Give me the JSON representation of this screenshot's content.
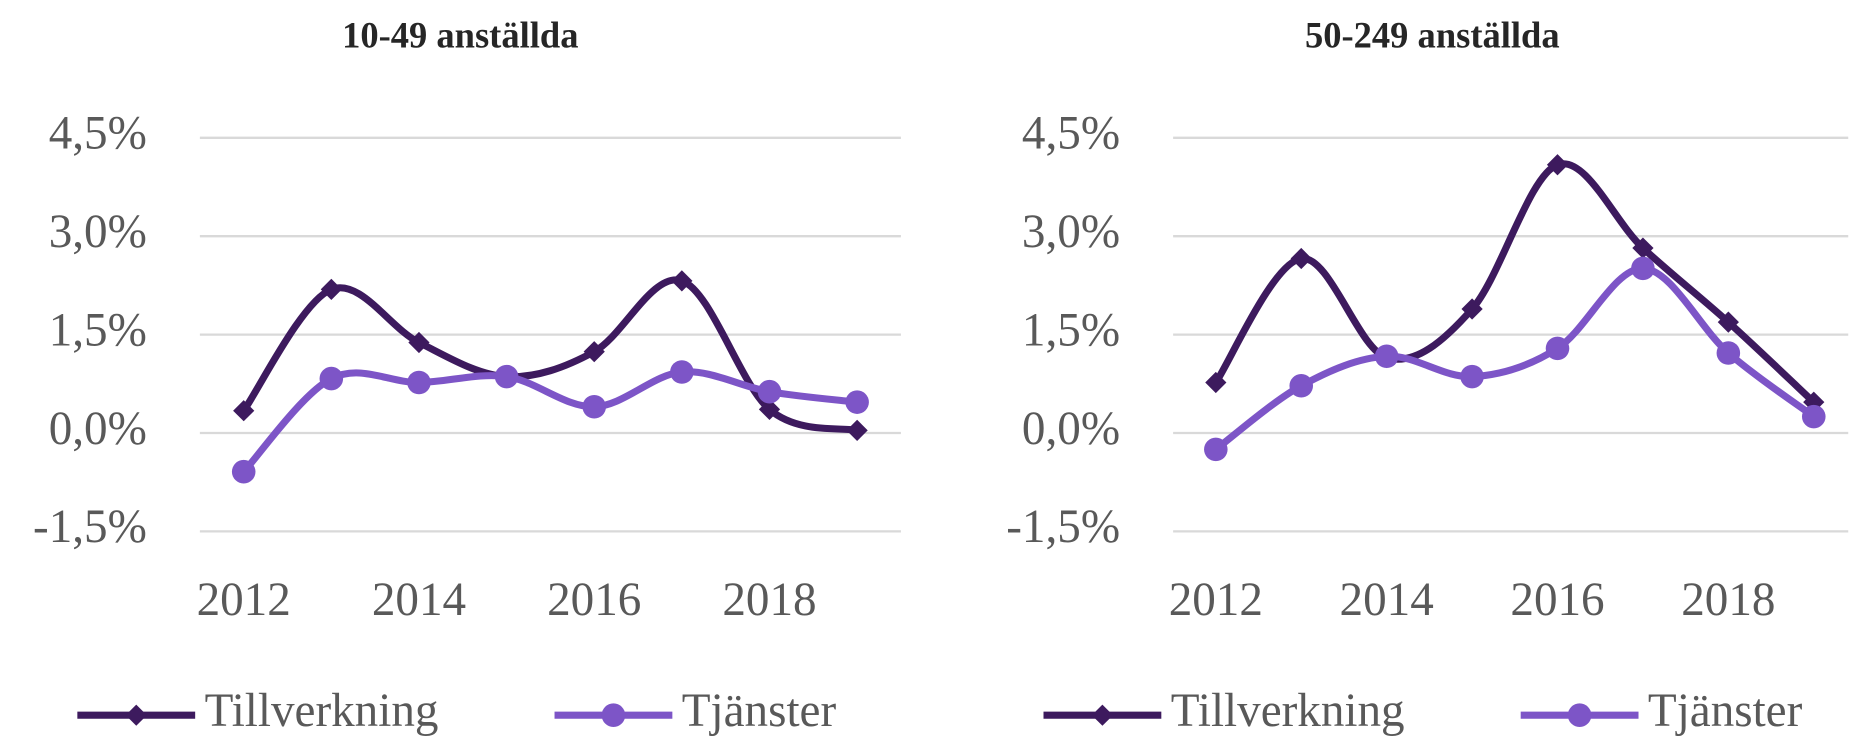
{
  "chart_data": [
    {
      "type": "line",
      "title": "10-49 anställda",
      "x": [
        2012,
        2013,
        2014,
        2015,
        2016,
        2017,
        2018,
        2019
      ],
      "series": [
        {
          "name": "Tillverkning",
          "color": "#3d1a5e",
          "marker": "diamond",
          "values": [
            0.34,
            2.19,
            1.38,
            0.86,
            1.24,
            2.32,
            0.36,
            0.04
          ]
        },
        {
          "name": "Tjänster",
          "color": "#7d55c7",
          "marker": "circle",
          "values": [
            -0.59,
            0.83,
            0.77,
            0.86,
            0.4,
            0.93,
            0.63,
            0.47
          ]
        }
      ],
      "xlim": [
        2011.5,
        2019.5
      ],
      "xticks": [
        2012,
        2014,
        2016,
        2018
      ],
      "ylim": [
        -1.5,
        4.5
      ],
      "yticks": [
        {
          "value": -1.5,
          "label": "-1,5%"
        },
        {
          "value": 0,
          "label": "0,0%"
        },
        {
          "value": 1.5,
          "label": "1,5%"
        },
        {
          "value": 3,
          "label": "3,0%"
        },
        {
          "value": 4.5,
          "label": "4,5%"
        }
      ],
      "grid": true,
      "legend": "bottom"
    },
    {
      "type": "line",
      "title": "50-249 anställda",
      "x": [
        2012,
        2013,
        2014,
        2015,
        2016,
        2017,
        2018,
        2019
      ],
      "series": [
        {
          "name": "Tillverkning",
          "color": "#3d1a5e",
          "marker": "diamond",
          "values": [
            0.77,
            2.66,
            1.15,
            1.89,
            4.09,
            2.82,
            1.69,
            0.47
          ]
        },
        {
          "name": "Tjänster",
          "color": "#7d55c7",
          "marker": "circle",
          "values": [
            -0.25,
            0.72,
            1.17,
            0.86,
            1.29,
            2.51,
            1.22,
            0.25
          ]
        }
      ],
      "xlim": [
        2011.5,
        2019.5
      ],
      "xticks": [
        2012,
        2014,
        2016,
        2018
      ],
      "ylim": [
        -1.5,
        4.5
      ],
      "yticks": [
        {
          "value": -1.5,
          "label": "-1,5%"
        },
        {
          "value": 0,
          "label": "0,0%"
        },
        {
          "value": 1.5,
          "label": "1,5%"
        },
        {
          "value": 3,
          "label": "3,0%"
        },
        {
          "value": 4.5,
          "label": "4,5%"
        }
      ],
      "grid": true,
      "legend": "bottom"
    }
  ]
}
